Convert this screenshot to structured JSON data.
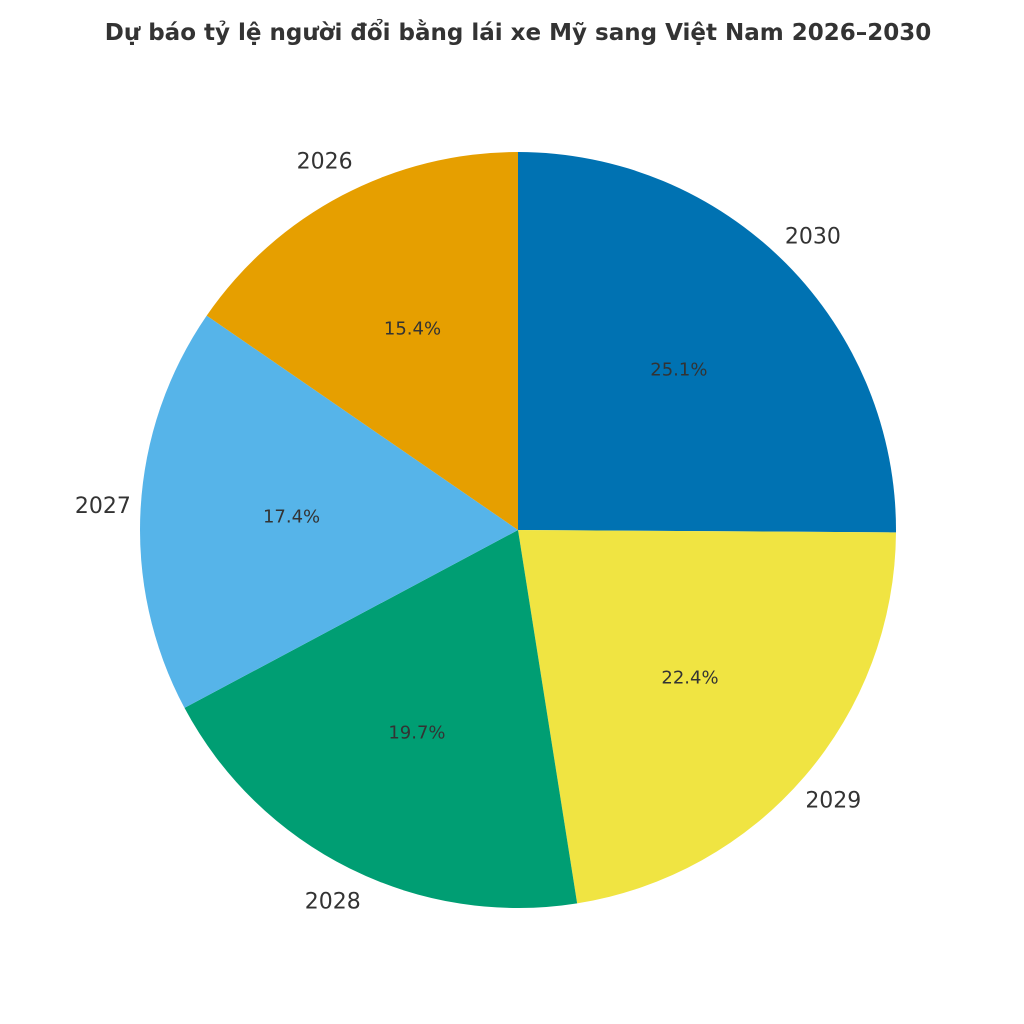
{
  "chart_data": {
    "type": "pie",
    "title": "Dự báo tỷ lệ người đổi bằng lái xe Mỹ sang Việt Nam 2026–2030",
    "start_angle": "12 o'clock",
    "direction": "clockwise",
    "slices": [
      {
        "label": "2030",
        "value": 25.1,
        "pct_label": "25.1%",
        "color": "#0072B2"
      },
      {
        "label": "2029",
        "value": 22.4,
        "pct_label": "22.4%",
        "color": "#F0E442"
      },
      {
        "label": "2028",
        "value": 19.7,
        "pct_label": "19.7%",
        "color": "#009E73"
      },
      {
        "label": "2027",
        "value": 17.4,
        "pct_label": "17.4%",
        "color": "#56B4E9"
      },
      {
        "label": "2026",
        "value": 15.4,
        "pct_label": "15.4%",
        "color": "#E69F00"
      }
    ],
    "legend": "none (category labels outside slices)"
  }
}
